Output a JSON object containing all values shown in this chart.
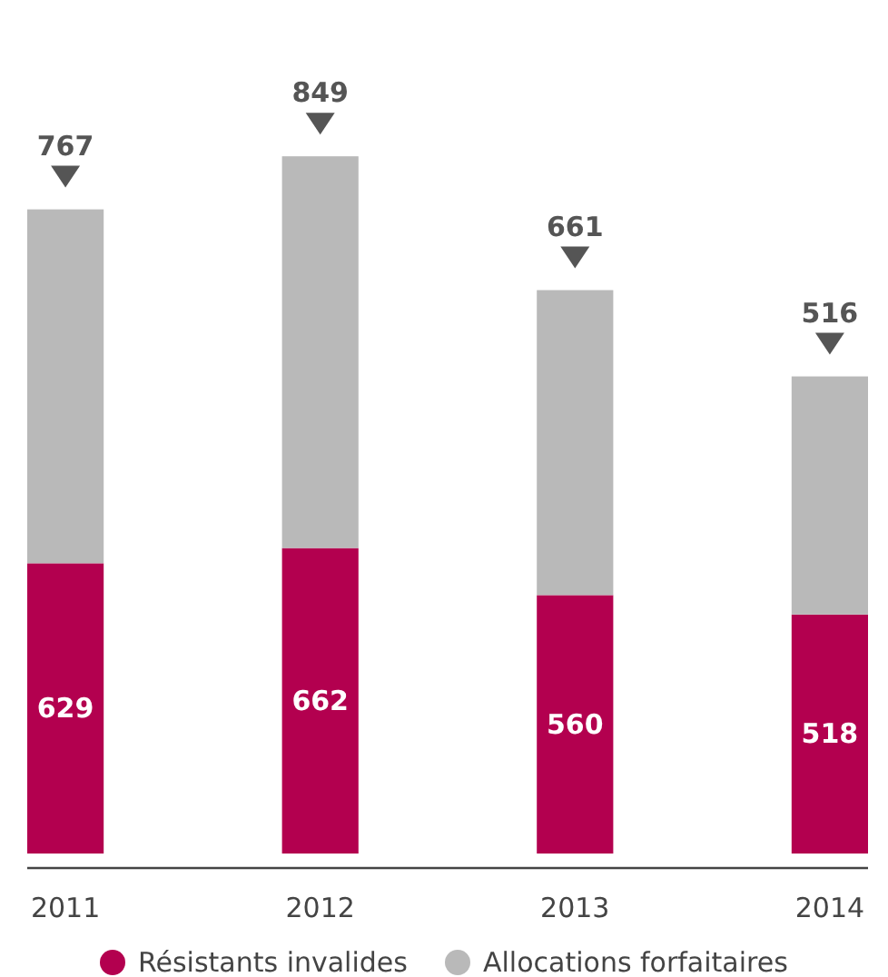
{
  "chart_data": {
    "type": "bar",
    "stacked": true,
    "relative": false,
    "data_labels": true,
    "legend": "bottom",
    "categories": [
      "2011",
      "2012",
      "2013",
      "2014"
    ],
    "series": [
      {
        "name": "Résistants invalides",
        "color": "#b3004f",
        "values": [
          629,
          662,
          560,
          518
        ]
      },
      {
        "name": "Allocations forfaitaires",
        "color": "#b9b9b9",
        "values": [
          767,
          849,
          661,
          516
        ]
      }
    ]
  }
}
